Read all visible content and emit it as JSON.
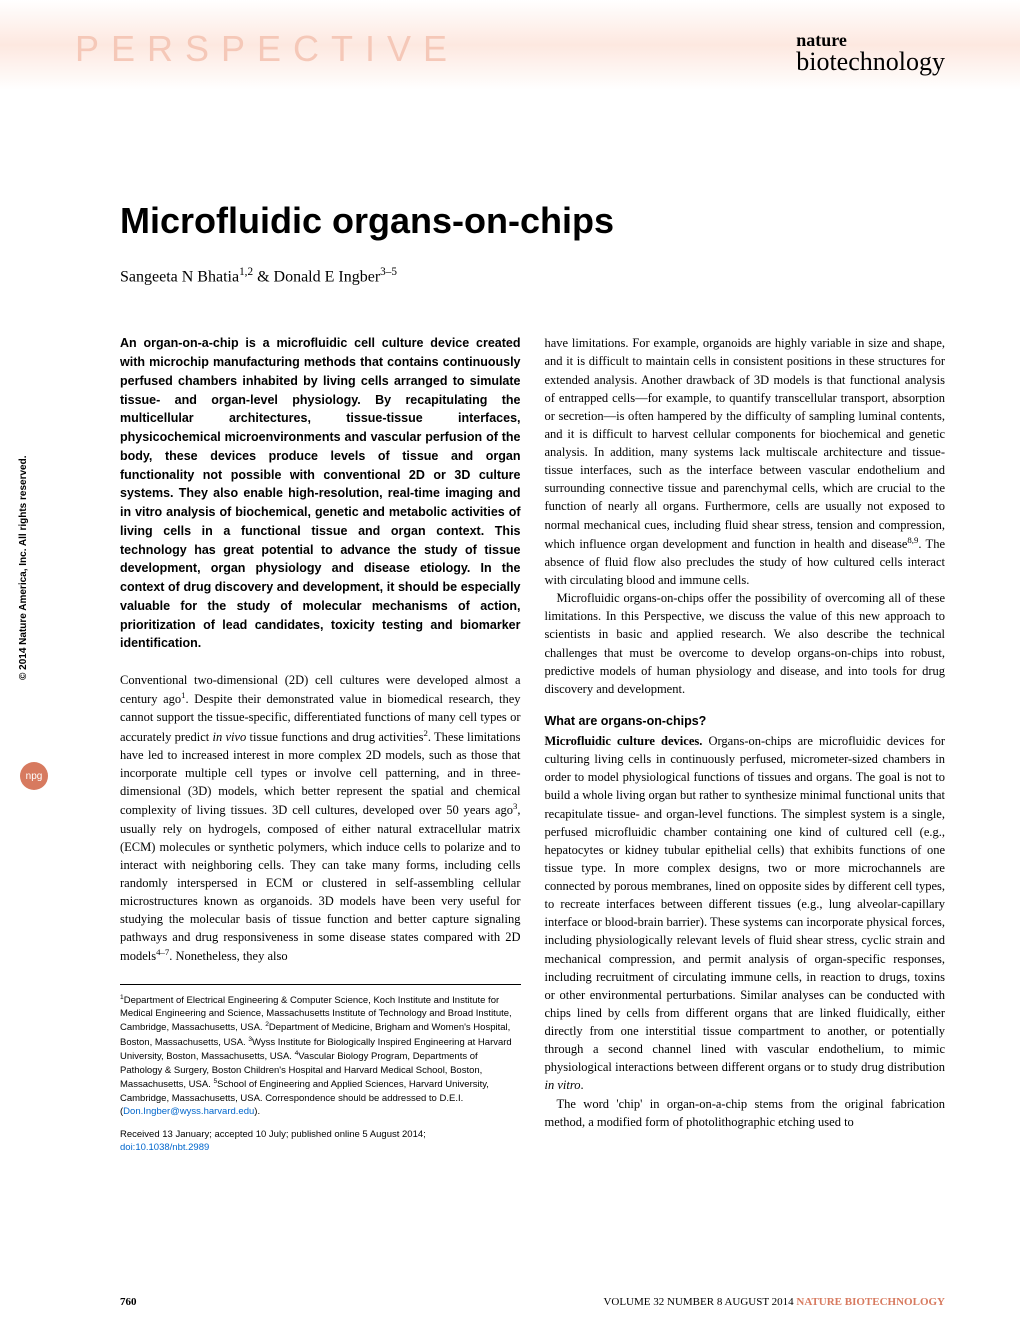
{
  "header": {
    "section_label": "PERSPECTIVE",
    "journal_line1": "nature",
    "journal_line2": "biotechnology"
  },
  "article": {
    "title": "Microfluidic organs-on-chips",
    "authors_html": "Sangeeta N Bhatia<sup>1,2</sup> & Donald E Ingber<sup>3–5</sup>"
  },
  "abstract": "An organ-on-a-chip is a microfluidic cell culture device created with microchip manufacturing methods that contains continuously perfused chambers inhabited by living cells arranged to simulate tissue- and organ-level physiology. By recapitulating the multicellular architectures, tissue-tissue interfaces, physicochemical microenvironments and vascular perfusion of the body, these devices produce levels of tissue and organ functionality not possible with conventional 2D or 3D culture systems. They also enable high-resolution, real-time imaging and in vitro analysis of biochemical, genetic and metabolic activities of living cells in a functional tissue and organ context. This technology has great potential to advance the study of tissue development, organ physiology and disease etiology. In the context of drug discovery and development, it should be especially valuable for the study of molecular mechanisms of action, prioritization of lead candidates, toxicity testing and biomarker identification.",
  "body": {
    "left_p1_html": "Conventional two-dimensional (2D) cell cultures were developed almost a century ago<sup>1</sup>. Despite their demonstrated value in biomedical research, they cannot support the tissue-specific, differentiated functions of many cell types or accurately predict <span class=\"italic\">in vivo</span> tissue functions and drug activities<sup>2</sup>. These limitations have led to increased interest in more complex 2D models, such as those that incorporate multiple cell types or involve cell patterning, and in three-dimensional (3D) models, which better represent the spatial and chemical complexity of living tissues. 3D cell cultures, developed over 50 years ago<sup>3</sup>, usually rely on hydrogels, composed of either natural extracellular matrix (ECM) molecules or synthetic polymers, which induce cells to polarize and to interact with neighboring cells. They can take many forms, including cells randomly interspersed in ECM or clustered in self-assembling cellular microstructures known as organoids. 3D models have been very useful for studying the molecular basis of tissue function and better capture signaling pathways and drug responsiveness in some disease states compared with 2D models<sup>4–7</sup>. Nonetheless, they also",
    "right_p1_html": "have limitations. For example, organoids are highly variable in size and shape, and it is difficult to maintain cells in consistent positions in these structures for extended analysis. Another drawback of 3D models is that functional analysis of entrapped cells—for example, to quantify transcellular transport, absorption or secretion—is often hampered by the difficulty of sampling luminal contents, and it is difficult to harvest cellular components for biochemical and genetic analysis. In addition, many systems lack multiscale architecture and tissue-tissue interfaces, such as the interface between vascular endothelium and surrounding connective tissue and parenchymal cells, which are crucial to the function of nearly all organs. Furthermore, cells are usually not exposed to normal mechanical cues, including fluid shear stress, tension and compression, which influence organ development and function in health and disease<sup>8,9</sup>. The absence of fluid flow also precludes the study of how cultured cells interact with circulating blood and immune cells.",
    "right_p2": "Microfluidic organs-on-chips offer the possibility of overcoming all of these limitations. In this Perspective, we discuss the value of this new approach to scientists in basic and applied research. We also describe the technical challenges that must be overcome to develop organs-on-chips into robust, predictive models of human physiology and disease, and into tools for drug discovery and development.",
    "section_heading": "What are organs-on-chips?",
    "right_p3_html": "<span class=\"run-in\">Microfluidic culture devices.</span> Organs-on-chips are microfluidic devices for culturing living cells in continuously perfused, micrometer-sized chambers in order to model physiological functions of tissues and organs. The goal is not to build a whole living organ but rather to synthesize minimal functional units that recapitulate tissue- and organ-level functions. The simplest system is a single, perfused microfluidic chamber containing one kind of cultured cell (e.g., hepatocytes or kidney tubular epithelial cells) that exhibits functions of one tissue type. In more complex designs, two or more microchannels are connected by porous membranes, lined on opposite sides by different cell types, to recreate interfaces between different tissues (e.g., lung alveolar-capillary interface or blood-brain barrier). These systems can incorporate physical forces, including physiologically relevant levels of fluid shear stress, cyclic strain and mechanical compression, and permit analysis of organ-specific responses, including recruitment of circulating immune cells, in reaction to drugs, toxins or other environmental perturbations. Similar analyses can be conducted with chips lined by cells from different organs that are linked fluidically, either directly from one interstitial tissue compartment to another, or potentially through a second channel lined with vascular endothelium, to mimic physiological interactions between different organs or to study drug distribution <span class=\"italic\">in vitro</span>.",
    "right_p4": "The word 'chip' in organ-on-a-chip stems from the original fabrication method, a modified form of photolithographic etching used to"
  },
  "affiliations_html": "<sup>1</sup>Department of Electrical Engineering & Computer Science, Koch Institute and Institute for Medical Engineering and Science, Massachusetts Institute of Technology and Broad Institute, Cambridge, Massachusetts, USA. <sup>2</sup>Department of Medicine, Brigham and Women's Hospital, Boston, Massachusetts, USA. <sup>3</sup>Wyss Institute for Biologically Inspired Engineering at Harvard University, Boston, Massachusetts, USA. <sup>4</sup>Vascular Biology Program, Departments of Pathology & Surgery, Boston Children's Hospital and Harvard Medical School, Boston, Massachusetts, USA. <sup>5</sup>School of Engineering and Applied Sciences, Harvard University, Cambridge, Massachusetts, USA. Correspondence should be addressed to D.E.I. (<span class=\"email-link\">Don.Ingber@wyss.harvard.edu</span>).",
  "received": {
    "text": "Received 13 January; accepted 10 July; published online 5 August 2014;",
    "doi": "doi:10.1038/nbt.2989"
  },
  "sidebar": {
    "copyright": "© 2014 Nature America, Inc. All rights reserved.",
    "badge": "npg"
  },
  "footer": {
    "page": "760",
    "issue_info": "VOLUME 32   NUMBER 8   AUGUST 2014   ",
    "journal": "NATURE BIOTECHNOLOGY"
  },
  "colors": {
    "banner_bg": "#fde8e0",
    "banner_text": "#f5c8b8",
    "accent": "#d77a5f",
    "link": "#0066cc",
    "text": "#000000",
    "page_bg": "#ffffff"
  },
  "typography": {
    "title_fontsize": 36,
    "section_label_fontsize": 36,
    "authors_fontsize": 16,
    "body_fontsize": 12.5,
    "affiliations_fontsize": 9.5,
    "footer_fontsize": 11
  }
}
